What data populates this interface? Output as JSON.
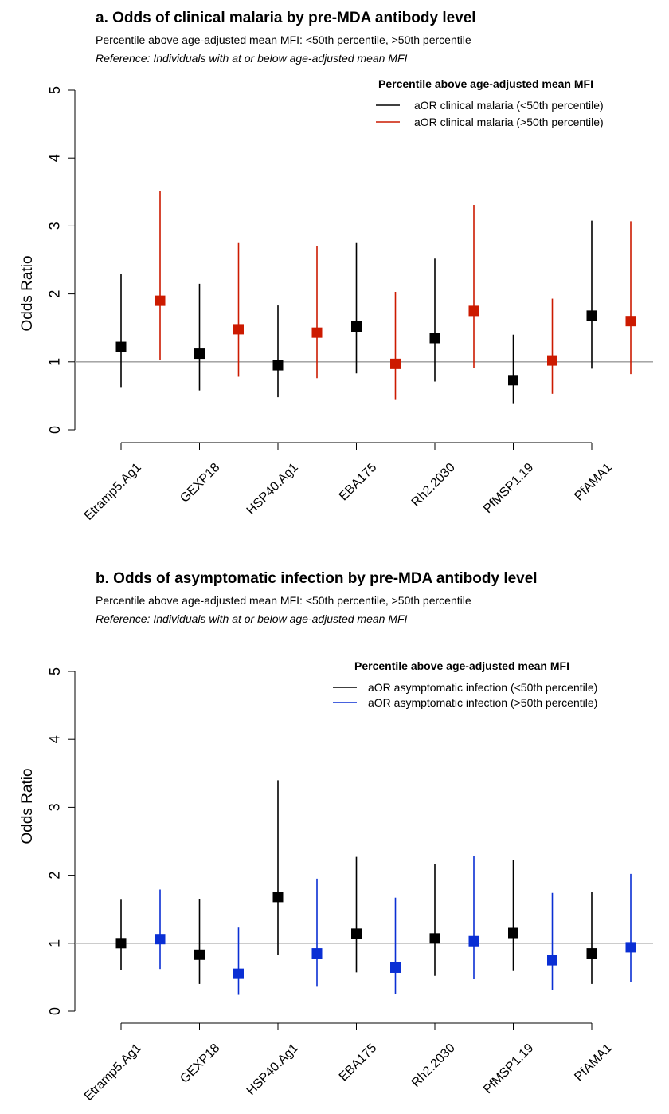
{
  "chart_data": [
    {
      "type": "scatter",
      "title": "a. Odds of clinical malaria by pre-MDA antibody level",
      "subtitle": "Percentile above age-adjusted mean MFI: <50th percentile, >50th percentile",
      "reference_note": "Reference: Individuals with at or below age-adjusted mean MFI",
      "ylabel": "Odds Ratio",
      "ylim": [
        0,
        5
      ],
      "yticks": [
        "0",
        "1",
        "2",
        "3",
        "4",
        "5"
      ],
      "reference_line": 1,
      "categories": [
        "Etramp5.Ag1",
        "GEXP18",
        "HSP40.Ag1",
        "EBA175",
        "Rh2.2030",
        "PfMSP1.19",
        "PfAMA1"
      ],
      "legend": {
        "title": "Percentile above age-adjusted mean MFI",
        "position": "top-right",
        "items": [
          "aOR clinical malaria (<50th percentile)",
          "aOR clinical malaria  (>50th percentile)"
        ]
      },
      "series": [
        {
          "color": "#000000",
          "values": [
            1.22,
            1.12,
            0.95,
            1.52,
            1.35,
            0.73,
            1.68
          ],
          "lower": [
            0.63,
            0.58,
            0.48,
            0.83,
            0.71,
            0.38,
            0.9
          ],
          "upper": [
            2.3,
            2.15,
            1.83,
            2.75,
            2.52,
            1.4,
            3.08
          ]
        },
        {
          "color": "#cc1a00",
          "values": [
            1.9,
            1.48,
            1.43,
            0.97,
            1.75,
            1.02,
            1.6
          ],
          "lower": [
            1.03,
            0.78,
            0.76,
            0.45,
            0.91,
            0.53,
            0.82
          ],
          "upper": [
            3.52,
            2.75,
            2.7,
            2.03,
            3.31,
            1.93,
            3.07
          ]
        }
      ]
    },
    {
      "type": "scatter",
      "title": "b. Odds of asymptomatic infection by pre-MDA antibody level",
      "subtitle": "Percentile above age-adjusted mean MFI: <50th percentile, >50th percentile",
      "reference_note": "Reference: Individuals with at or below age-adjusted mean MFI",
      "ylabel": "Odds Ratio",
      "ylim": [
        0,
        5
      ],
      "yticks": [
        "0",
        "1",
        "2",
        "3",
        "4",
        "5"
      ],
      "reference_line": 1,
      "categories": [
        "Etramp5.Ag1",
        "GEXP18",
        "HSP40.Ag1",
        "EBA175",
        "Rh2.2030",
        "PfMSP1.19",
        "PfAMA1"
      ],
      "legend": {
        "title": "Percentile above age-adjusted mean MFI",
        "position": "top-right",
        "items": [
          "aOR asymptomatic infection (<50th percentile)",
          "aOR asymptomatic infection (>50th percentile)"
        ]
      },
      "series": [
        {
          "color": "#000000",
          "values": [
            1.0,
            0.83,
            1.68,
            1.14,
            1.07,
            1.15,
            0.85
          ],
          "lower": [
            0.6,
            0.4,
            0.83,
            0.57,
            0.52,
            0.59,
            0.4
          ],
          "upper": [
            1.64,
            1.65,
            3.4,
            2.27,
            2.16,
            2.23,
            1.76
          ]
        },
        {
          "color": "#0a2fd4",
          "values": [
            1.06,
            0.55,
            0.85,
            0.64,
            1.03,
            0.75,
            0.94
          ],
          "lower": [
            0.62,
            0.24,
            0.36,
            0.25,
            0.47,
            0.31,
            0.43
          ],
          "upper": [
            1.79,
            1.23,
            1.95,
            1.67,
            2.28,
            1.74,
            2.02
          ]
        }
      ]
    }
  ]
}
